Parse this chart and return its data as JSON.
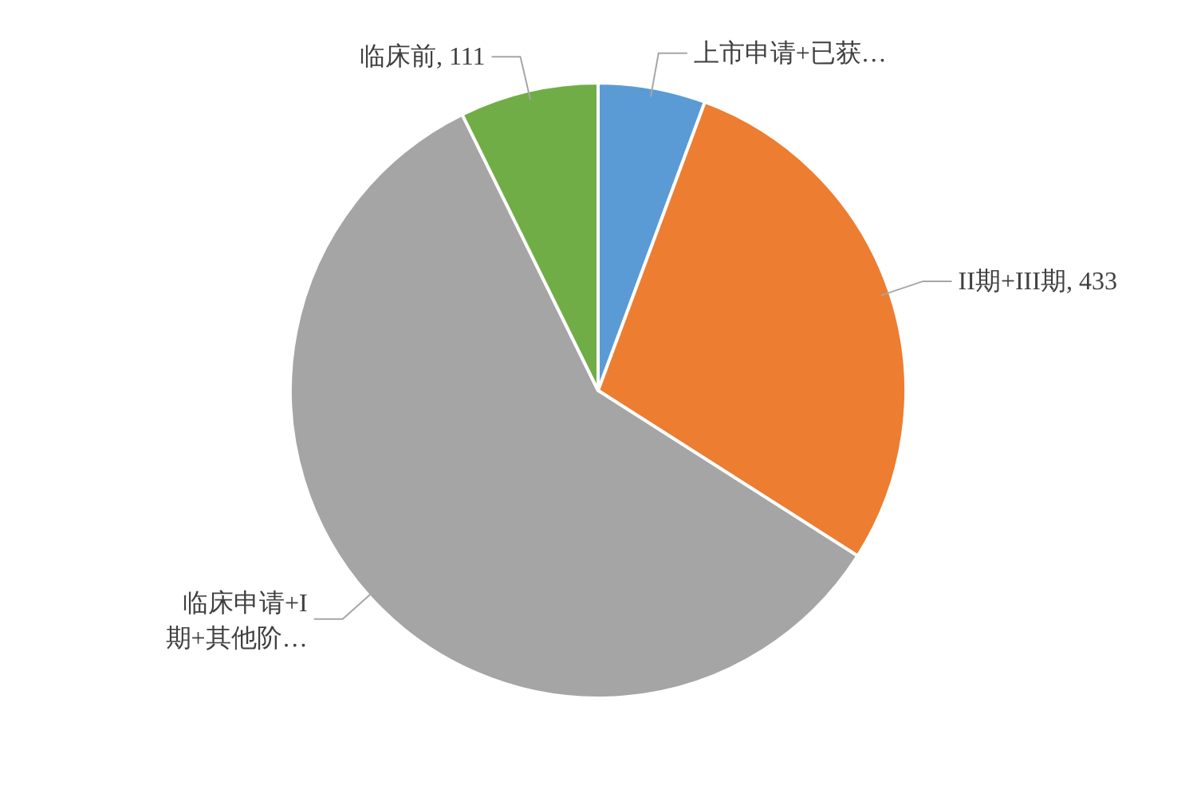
{
  "chart_data": {
    "type": "pie",
    "categories": [
      "上市申请+已获…",
      "II期+III期",
      "临床申请+I期+其他阶…",
      "临床前"
    ],
    "values": [
      86,
      433,
      895,
      111
    ],
    "value_labels": [
      null,
      "433",
      null,
      "111"
    ],
    "colors": [
      "#5b9bd5",
      "#ed7d31",
      "#a5a5a5",
      "#70ad47"
    ]
  }
}
